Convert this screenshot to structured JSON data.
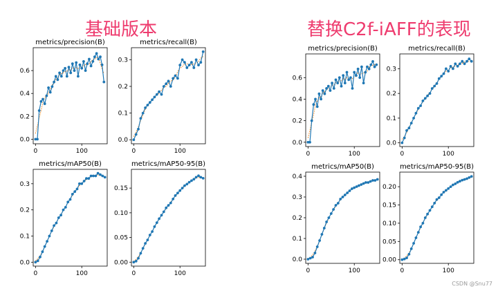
{
  "headings": {
    "left": "基础版本",
    "right": "替换C2f-iAFF的表现"
  },
  "watermark": "CSDN @Snu77",
  "colors": {
    "line": "#1f77b4",
    "smooth": "#ff7f0e",
    "heading": "#ee3b6e"
  },
  "chart_data": [
    {
      "group": "基础版本",
      "type": "line",
      "title": "metrics/precision(B)",
      "xlim": [
        -5,
        155
      ],
      "ylim": [
        -0.04,
        0.8
      ],
      "xticks": [
        0,
        100
      ],
      "yticks": [
        0.0,
        0.2,
        0.4,
        0.6
      ],
      "series": [
        {
          "x": [
            0,
            4,
            8,
            12,
            16,
            20,
            24,
            28,
            32,
            36,
            40,
            44,
            48,
            52,
            56,
            60,
            64,
            68,
            72,
            76,
            80,
            84,
            88,
            92,
            96,
            100,
            104,
            108,
            112,
            116,
            120,
            124,
            128,
            132,
            136,
            140,
            144,
            148
          ],
          "y": [
            0.0,
            0.0,
            0.25,
            0.33,
            0.35,
            0.31,
            0.38,
            0.45,
            0.41,
            0.46,
            0.5,
            0.55,
            0.52,
            0.58,
            0.55,
            0.6,
            0.62,
            0.55,
            0.63,
            0.58,
            0.66,
            0.6,
            0.67,
            0.55,
            0.65,
            0.62,
            0.68,
            0.6,
            0.66,
            0.7,
            0.64,
            0.68,
            0.72,
            0.75,
            0.7,
            0.72,
            0.65,
            0.5
          ]
        }
      ]
    },
    {
      "group": "基础版本",
      "type": "line",
      "title": "metrics/recall(B)",
      "xlim": [
        -5,
        155
      ],
      "ylim": [
        -0.015,
        0.345
      ],
      "xticks": [
        0,
        100
      ],
      "yticks": [
        0.0,
        0.1,
        0.2,
        0.3
      ],
      "series": [
        {
          "x": [
            0,
            5,
            10,
            15,
            20,
            25,
            30,
            35,
            40,
            45,
            50,
            55,
            60,
            65,
            70,
            75,
            80,
            85,
            90,
            95,
            100,
            105,
            110,
            115,
            120,
            125,
            130,
            135,
            140,
            145,
            150
          ],
          "y": [
            0.0,
            0.02,
            0.04,
            0.08,
            0.1,
            0.12,
            0.13,
            0.14,
            0.15,
            0.16,
            0.17,
            0.18,
            0.17,
            0.2,
            0.21,
            0.22,
            0.2,
            0.23,
            0.24,
            0.23,
            0.28,
            0.3,
            0.29,
            0.27,
            0.28,
            0.29,
            0.27,
            0.3,
            0.28,
            0.29,
            0.33
          ]
        }
      ]
    },
    {
      "group": "基础版本",
      "type": "line",
      "title": "metrics/mAP50(B)",
      "xlim": [
        -5,
        155
      ],
      "ylim": [
        -0.015,
        0.355
      ],
      "xticks": [
        0,
        100
      ],
      "yticks": [
        0.0,
        0.1,
        0.2,
        0.3
      ],
      "series": [
        {
          "x": [
            0,
            5,
            10,
            15,
            20,
            25,
            30,
            35,
            40,
            45,
            50,
            55,
            60,
            65,
            70,
            75,
            80,
            85,
            90,
            95,
            100,
            105,
            110,
            115,
            120,
            125,
            130,
            135,
            140,
            145,
            150
          ],
          "y": [
            0.0,
            0.005,
            0.02,
            0.04,
            0.06,
            0.08,
            0.1,
            0.12,
            0.14,
            0.15,
            0.17,
            0.18,
            0.2,
            0.21,
            0.23,
            0.24,
            0.26,
            0.27,
            0.28,
            0.3,
            0.3,
            0.31,
            0.32,
            0.32,
            0.33,
            0.33,
            0.33,
            0.34,
            0.335,
            0.33,
            0.325
          ]
        }
      ]
    },
    {
      "group": "基础版本",
      "type": "line",
      "title": "metrics/mAP50-95(B)",
      "xlim": [
        -5,
        155
      ],
      "ylim": [
        -0.008,
        0.188
      ],
      "xticks": [
        0,
        100
      ],
      "yticks": [
        0.0,
        0.05,
        0.1,
        0.15
      ],
      "series": [
        {
          "x": [
            0,
            5,
            10,
            15,
            20,
            25,
            30,
            35,
            40,
            45,
            50,
            55,
            60,
            65,
            70,
            75,
            80,
            85,
            90,
            95,
            100,
            105,
            110,
            115,
            120,
            125,
            130,
            135,
            140,
            145,
            150
          ],
          "y": [
            0.0,
            0.002,
            0.008,
            0.018,
            0.028,
            0.038,
            0.045,
            0.055,
            0.062,
            0.072,
            0.08,
            0.088,
            0.095,
            0.102,
            0.11,
            0.115,
            0.12,
            0.128,
            0.135,
            0.14,
            0.145,
            0.15,
            0.155,
            0.158,
            0.162,
            0.165,
            0.168,
            0.172,
            0.175,
            0.172,
            0.17
          ]
        }
      ]
    },
    {
      "group": "替换C2f-iAFF的表现",
      "type": "line",
      "title": "metrics/precision(B)",
      "xlim": [
        -5,
        155
      ],
      "ylim": [
        -0.04,
        0.82
      ],
      "xticks": [
        0,
        100
      ],
      "yticks": [
        0.0,
        0.2,
        0.4,
        0.6
      ],
      "series": [
        {
          "x": [
            0,
            4,
            8,
            12,
            16,
            20,
            24,
            28,
            32,
            36,
            40,
            44,
            48,
            52,
            56,
            60,
            64,
            68,
            72,
            76,
            80,
            84,
            88,
            92,
            96,
            100,
            104,
            108,
            112,
            116,
            120,
            124,
            128,
            132,
            136,
            140,
            144,
            148
          ],
          "y": [
            0.0,
            0.0,
            0.2,
            0.35,
            0.4,
            0.33,
            0.45,
            0.4,
            0.48,
            0.45,
            0.5,
            0.52,
            0.48,
            0.55,
            0.5,
            0.58,
            0.55,
            0.6,
            0.52,
            0.62,
            0.55,
            0.65,
            0.58,
            0.6,
            0.5,
            0.65,
            0.62,
            0.68,
            0.6,
            0.7,
            0.55,
            0.65,
            0.7,
            0.68,
            0.72,
            0.75,
            0.7,
            0.72
          ]
        }
      ]
    },
    {
      "group": "替换C2f-iAFF的表现",
      "type": "line",
      "title": "metrics/recall(B)",
      "xlim": [
        -5,
        155
      ],
      "ylim": [
        -0.015,
        0.36
      ],
      "xticks": [
        0,
        100
      ],
      "yticks": [
        0.0,
        0.1,
        0.2,
        0.3
      ],
      "series": [
        {
          "x": [
            0,
            5,
            10,
            15,
            20,
            25,
            30,
            35,
            40,
            45,
            50,
            55,
            60,
            65,
            70,
            75,
            80,
            85,
            90,
            95,
            100,
            105,
            110,
            115,
            120,
            125,
            130,
            135,
            140,
            145,
            150
          ],
          "y": [
            0.0,
            0.02,
            0.05,
            0.06,
            0.08,
            0.1,
            0.12,
            0.14,
            0.15,
            0.17,
            0.18,
            0.19,
            0.2,
            0.22,
            0.23,
            0.24,
            0.26,
            0.27,
            0.28,
            0.3,
            0.29,
            0.31,
            0.3,
            0.32,
            0.31,
            0.32,
            0.33,
            0.32,
            0.33,
            0.34,
            0.33
          ]
        }
      ]
    },
    {
      "group": "替换C2f-iAFF的表现",
      "type": "line",
      "title": "metrics/mAP50(B)",
      "xlim": [
        -5,
        155
      ],
      "ylim": [
        -0.02,
        0.42
      ],
      "xticks": [
        0,
        100
      ],
      "yticks": [
        0.0,
        0.1,
        0.2,
        0.3,
        0.4
      ],
      "series": [
        {
          "x": [
            0,
            5,
            10,
            15,
            20,
            25,
            30,
            35,
            40,
            45,
            50,
            55,
            60,
            65,
            70,
            75,
            80,
            85,
            90,
            95,
            100,
            105,
            110,
            115,
            120,
            125,
            130,
            135,
            140,
            145,
            150
          ],
          "y": [
            0.0,
            0.005,
            0.01,
            0.03,
            0.06,
            0.09,
            0.12,
            0.15,
            0.18,
            0.2,
            0.22,
            0.24,
            0.26,
            0.27,
            0.29,
            0.3,
            0.31,
            0.32,
            0.33,
            0.34,
            0.345,
            0.35,
            0.355,
            0.36,
            0.365,
            0.37,
            0.37,
            0.375,
            0.38,
            0.38,
            0.385
          ]
        }
      ]
    },
    {
      "group": "替换C2f-iAFF的表现",
      "type": "line",
      "title": "metrics/mAP50-95(B)",
      "xlim": [
        -5,
        155
      ],
      "ylim": [
        -0.01,
        0.24
      ],
      "xticks": [
        0,
        100
      ],
      "yticks": [
        0.0,
        0.05,
        0.1,
        0.15,
        0.2
      ],
      "series": [
        {
          "x": [
            0,
            5,
            10,
            15,
            20,
            25,
            30,
            35,
            40,
            45,
            50,
            55,
            60,
            65,
            70,
            75,
            80,
            85,
            90,
            95,
            100,
            105,
            110,
            115,
            120,
            125,
            130,
            135,
            140,
            145,
            150
          ],
          "y": [
            0.0,
            0.002,
            0.005,
            0.015,
            0.03,
            0.045,
            0.06,
            0.075,
            0.09,
            0.1,
            0.115,
            0.125,
            0.135,
            0.145,
            0.155,
            0.165,
            0.17,
            0.178,
            0.185,
            0.19,
            0.195,
            0.2,
            0.205,
            0.208,
            0.212,
            0.215,
            0.218,
            0.22,
            0.222,
            0.225,
            0.228
          ]
        }
      ]
    }
  ]
}
